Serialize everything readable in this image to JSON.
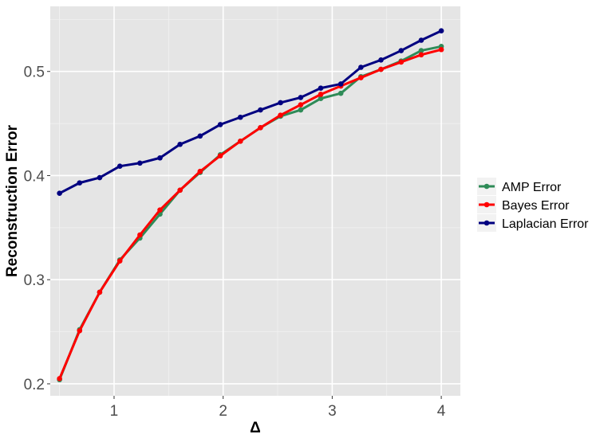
{
  "chart_data": {
    "type": "line",
    "xlabel": "Δ",
    "ylabel": "Reconstruction Error",
    "xlim": [
      0.415,
      4.175
    ],
    "ylim": [
      0.1885,
      0.5625
    ],
    "x_ticks": [
      1,
      2,
      3,
      4
    ],
    "x_tick_labels": [
      "1",
      "2",
      "3",
      "4"
    ],
    "y_ticks": [
      0.2,
      0.3,
      0.4,
      0.5
    ],
    "y_tick_labels": [
      "0.2",
      "0.3",
      "0.4",
      "0.5"
    ],
    "grid": true,
    "legend_position": "right",
    "x": [
      0.5,
      0.684,
      0.868,
      1.053,
      1.237,
      1.421,
      1.605,
      1.789,
      1.974,
      2.158,
      2.342,
      2.526,
      2.711,
      2.895,
      3.079,
      3.263,
      3.447,
      3.632,
      3.816,
      4.0
    ],
    "series": [
      {
        "name": "AMP Error",
        "color": "#2e8b57",
        "values": [
          0.204,
          0.252,
          0.288,
          0.319,
          0.34,
          0.363,
          0.386,
          0.403,
          0.42,
          0.433,
          0.446,
          0.457,
          0.463,
          0.474,
          0.479,
          0.495,
          0.502,
          0.51,
          0.52,
          0.524
        ]
      },
      {
        "name": "Bayes Error",
        "color": "#ff0000",
        "values": [
          0.205,
          0.251,
          0.288,
          0.318,
          0.343,
          0.367,
          0.386,
          0.404,
          0.419,
          0.433,
          0.446,
          0.458,
          0.468,
          0.478,
          0.486,
          0.494,
          0.502,
          0.509,
          0.516,
          0.521
        ]
      },
      {
        "name": "Laplacian Error",
        "color": "#000080",
        "values": [
          0.383,
          0.393,
          0.398,
          0.409,
          0.412,
          0.417,
          0.43,
          0.438,
          0.449,
          0.456,
          0.463,
          0.47,
          0.475,
          0.484,
          0.488,
          0.504,
          0.511,
          0.52,
          0.53,
          0.539
        ]
      }
    ]
  }
}
